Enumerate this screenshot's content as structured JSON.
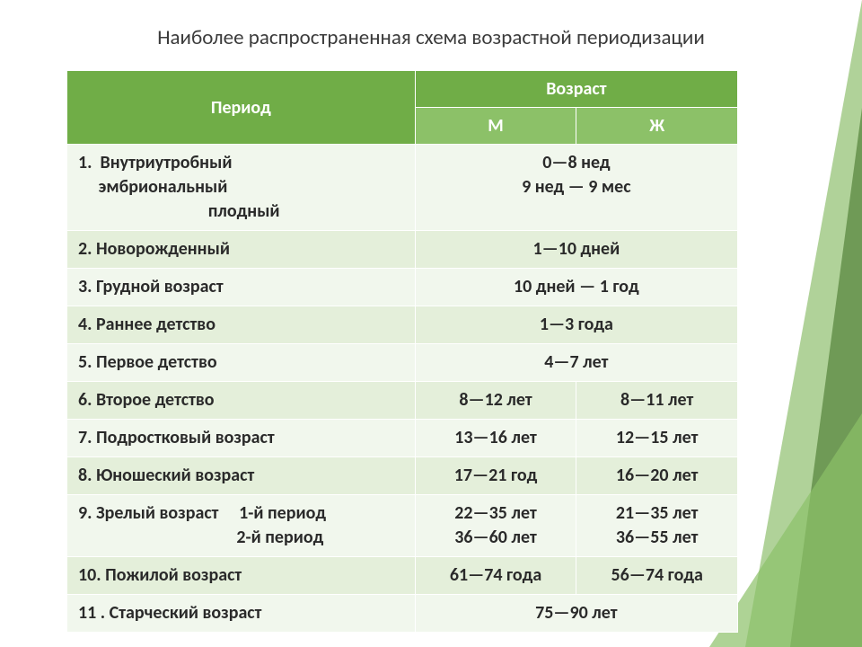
{
  "colors": {
    "header_dark": "#70ad47",
    "header_mid": "#8cc168",
    "row_light": "#e4efda",
    "row_white": "#f1f7ed",
    "title_text": "#3b3b3b",
    "body_text": "#2a2a2a",
    "border": "#ffffff",
    "accent_triangle": "#6fad46",
    "accent_triangle_dark": "#3a6b1f"
  },
  "typography": {
    "title_fontsize": 23,
    "cell_fontsize": 20,
    "font_family": "Calibri"
  },
  "title": "Наиболее распространенная схема возрастной периодизации",
  "header": {
    "period": "Период",
    "age": "Возраст",
    "m": "М",
    "f": "Ж"
  },
  "rows": [
    {
      "period": "1.  Внутриутробный\n     эмбриональный\n                                плодный",
      "age_merged": "0—8 нед\n9 нед — 9 мес",
      "row_cls": "row-white"
    },
    {
      "period": "2. Новорожденный",
      "age_merged": "1—10 дней",
      "row_cls": "row-light"
    },
    {
      "period": "3. Грудной возраст",
      "age_merged": "10 дней — 1 год",
      "row_cls": "row-white"
    },
    {
      "period": "4. Раннее детство",
      "age_merged": "1—3 года",
      "row_cls": "row-light"
    },
    {
      "period": "5. Первое детство",
      "age_merged": "4—7 лет",
      "row_cls": "row-white"
    },
    {
      "period": "6. Второе детство",
      "m": "8—12 лет",
      "f": "8—11 лет",
      "row_cls": "row-light"
    },
    {
      "period": "7. Подростковый возраст",
      "m": "13—16 лет",
      "f": "12—15 лет",
      "row_cls": "row-white"
    },
    {
      "period": "8. Юношеский возраст",
      "m": "17—21 год",
      "f": "16—20 лет",
      "row_cls": "row-light"
    },
    {
      "period": "9. Зрелый возраст     1-й период\n                                       2-й период",
      "m": "22—35 лет\n36—60 лет",
      "f": "21—35 лет\n36—55 лет",
      "row_cls": "row-white"
    },
    {
      "period": "10. Пожилой возраст",
      "m": "61—74 года",
      "f": "56—74 года",
      "row_cls": "row-light"
    },
    {
      "period": "11 . Старческий возраст",
      "age_merged": "75—90 лет",
      "row_cls": "row-white"
    }
  ]
}
